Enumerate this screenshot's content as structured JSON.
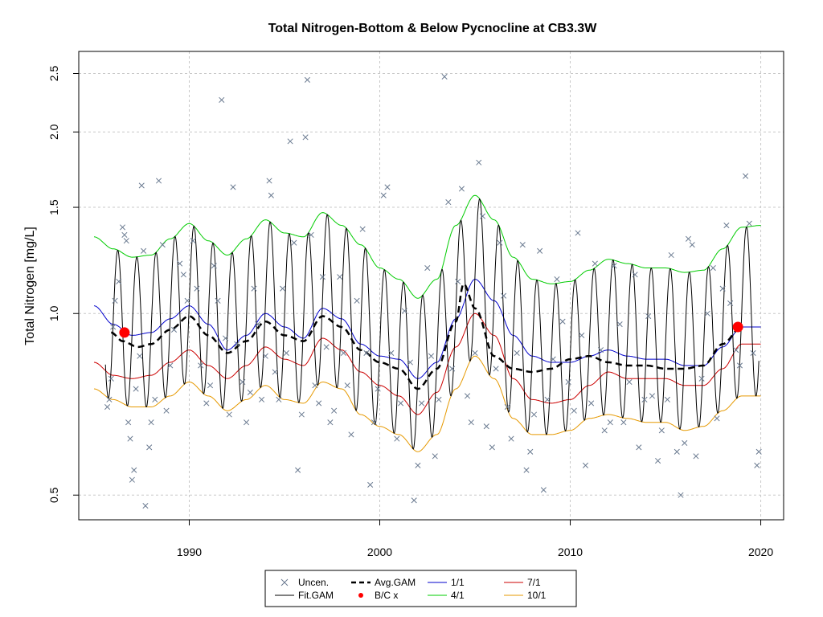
{
  "chart_data": {
    "type": "line",
    "title": "Total Nitrogen-Bottom & Below Pycnocline at CB3.3W",
    "ylabel": "Total Nitrogen [mg/L]",
    "xlabel": "",
    "y_scale": "log",
    "xlim": [
      1984.2,
      2021.2
    ],
    "ylim": [
      0.455,
      2.72
    ],
    "x_ticks": [
      1990,
      2000,
      2010,
      2020
    ],
    "x_tick_labels": [
      "1990",
      "2000",
      "2010",
      "2020"
    ],
    "y_ticks": [
      0.5,
      1.0,
      1.5,
      2.0,
      2.5
    ],
    "y_tick_labels": [
      "0.5",
      "1.0",
      "1.5",
      "2.0",
      "2.5"
    ],
    "grid": true,
    "legend_position": "bottom-outside",
    "legend": [
      {
        "label": "Uncen.",
        "symbol": "x",
        "color": "#6a7a90"
      },
      {
        "label": "Fit.GAM",
        "symbol": "line",
        "color": "#000000"
      },
      {
        "label": "Avg.GAM",
        "symbol": "dashed",
        "color": "#000000"
      },
      {
        "label": "B/C x",
        "symbol": "dot",
        "color": "#ff0000"
      },
      {
        "label": "1/1",
        "symbol": "line",
        "color": "#0000cc"
      },
      {
        "label": "4/1",
        "symbol": "line",
        "color": "#00cc00"
      },
      {
        "label": "7/1",
        "symbol": "line",
        "color": "#cc0000"
      },
      {
        "label": "10/1",
        "symbol": "line",
        "color": "#e69900"
      }
    ],
    "series": [
      {
        "name": "4/1",
        "color": "#00cc00",
        "x": [
          1985,
          1986,
          1987,
          1988,
          1989,
          1990,
          1991,
          1992,
          1993,
          1994,
          1995,
          1996,
          1997,
          1998,
          1999,
          2000,
          2001,
          2002,
          2003,
          2004,
          2005,
          2006,
          2007,
          2008,
          2009,
          2010,
          2011,
          2012,
          2013,
          2014,
          2015,
          2016,
          2017,
          2018,
          2019,
          2020
        ],
        "y": [
          1.34,
          1.28,
          1.24,
          1.25,
          1.33,
          1.41,
          1.32,
          1.25,
          1.33,
          1.43,
          1.36,
          1.34,
          1.47,
          1.4,
          1.3,
          1.19,
          1.14,
          1.06,
          1.14,
          1.4,
          1.57,
          1.43,
          1.24,
          1.14,
          1.12,
          1.13,
          1.18,
          1.23,
          1.21,
          1.19,
          1.19,
          1.17,
          1.18,
          1.28,
          1.39,
          1.4
        ]
      },
      {
        "name": "1/1",
        "color": "#0000cc",
        "x": [
          1985,
          1986,
          1987,
          1988,
          1989,
          1990,
          1991,
          1992,
          1993,
          1994,
          1995,
          1996,
          1997,
          1998,
          1999,
          2000,
          2001,
          2002,
          2003,
          2004,
          2005,
          2006,
          2007,
          2008,
          2009,
          2010,
          2011,
          2012,
          2013,
          2014,
          2015,
          2016,
          2017,
          2018,
          2019,
          2020
        ],
        "y": [
          1.03,
          0.96,
          0.92,
          0.93,
          0.98,
          1.03,
          0.96,
          0.87,
          0.92,
          1.0,
          0.95,
          0.91,
          1.02,
          0.98,
          0.89,
          0.85,
          0.84,
          0.78,
          0.83,
          0.98,
          1.14,
          1.05,
          0.92,
          0.85,
          0.83,
          0.83,
          0.85,
          0.87,
          0.85,
          0.84,
          0.84,
          0.82,
          0.82,
          0.88,
          0.95,
          0.95
        ]
      },
      {
        "name": "7/1",
        "color": "#cc0000",
        "x": [
          1985,
          1986,
          1987,
          1988,
          1989,
          1990,
          1991,
          1992,
          1993,
          1994,
          1995,
          1996,
          1997,
          1998,
          1999,
          2000,
          2001,
          2002,
          2003,
          2004,
          2005,
          2006,
          2007,
          2008,
          2009,
          2010,
          2011,
          2012,
          2013,
          2014,
          2015,
          2016,
          2017,
          2018,
          2019,
          2020
        ],
        "y": [
          0.83,
          0.79,
          0.78,
          0.79,
          0.83,
          0.87,
          0.82,
          0.78,
          0.82,
          0.88,
          0.84,
          0.82,
          0.91,
          0.87,
          0.8,
          0.76,
          0.73,
          0.68,
          0.74,
          0.88,
          1.0,
          0.92,
          0.78,
          0.72,
          0.71,
          0.72,
          0.76,
          0.8,
          0.78,
          0.78,
          0.78,
          0.76,
          0.76,
          0.81,
          0.89,
          0.89
        ]
      },
      {
        "name": "10/1",
        "color": "#e69900",
        "x": [
          1985,
          1986,
          1987,
          1988,
          1989,
          1990,
          1991,
          1992,
          1993,
          1994,
          1995,
          1996,
          1997,
          1998,
          1999,
          2000,
          2001,
          2002,
          2003,
          2004,
          2005,
          2006,
          2007,
          2008,
          2009,
          2010,
          2011,
          2012,
          2013,
          2014,
          2015,
          2016,
          2017,
          2018,
          2019,
          2020
        ],
        "y": [
          0.75,
          0.72,
          0.7,
          0.7,
          0.73,
          0.77,
          0.73,
          0.69,
          0.72,
          0.76,
          0.72,
          0.71,
          0.77,
          0.75,
          0.68,
          0.65,
          0.63,
          0.59,
          0.63,
          0.75,
          0.85,
          0.78,
          0.67,
          0.63,
          0.63,
          0.64,
          0.67,
          0.68,
          0.67,
          0.66,
          0.66,
          0.64,
          0.65,
          0.69,
          0.73,
          0.73
        ]
      },
      {
        "name": "Avg.GAM",
        "color": "#000000",
        "dashed": true,
        "x": [
          1985.9,
          1986.5,
          1987.3,
          1988,
          1989,
          1990,
          1991,
          1992,
          1993,
          1994,
          1995,
          1996,
          1997,
          1998,
          1999,
          2000,
          2001,
          2002,
          2003,
          2004,
          2004.4,
          2005,
          2006,
          2007,
          2008,
          2009,
          2010,
          2011,
          2012,
          2013,
          2014,
          2015,
          2016,
          2017,
          2018,
          2019
        ],
        "y": [
          0.93,
          0.9,
          0.88,
          0.89,
          0.94,
          0.99,
          0.92,
          0.86,
          0.9,
          0.97,
          0.92,
          0.9,
          0.99,
          0.95,
          0.87,
          0.83,
          0.81,
          0.75,
          0.81,
          0.97,
          1.12,
          1.02,
          0.85,
          0.81,
          0.8,
          0.81,
          0.84,
          0.85,
          0.83,
          0.82,
          0.82,
          0.81,
          0.81,
          0.82,
          0.89,
          0.95
        ]
      }
    ],
    "fit_gam": {
      "name": "Fit.GAM",
      "color": "#000000",
      "upper_envelope": "4/1",
      "lower_envelope": "10/1",
      "cycles_per_year": 1,
      "x_range": [
        1985.6,
        2019.9
      ]
    },
    "bc_points": {
      "name": "B/C x",
      "color": "#ff0000",
      "points": [
        {
          "x": 1986.6,
          "y": 0.93
        },
        {
          "x": 2018.8,
          "y": 0.95
        }
      ]
    },
    "observations": {
      "name": "Uncen.",
      "color": "#6a7a90",
      "points": [
        [
          1985.7,
          0.7
        ],
        [
          1985.8,
          0.72
        ],
        [
          1985.9,
          0.78
        ],
        [
          1986.0,
          0.95
        ],
        [
          1986.1,
          1.05
        ],
        [
          1986.3,
          1.13
        ],
        [
          1986.5,
          1.39
        ],
        [
          1986.6,
          1.35
        ],
        [
          1986.7,
          1.32
        ],
        [
          1986.8,
          0.66
        ],
        [
          1986.9,
          0.62
        ],
        [
          1987.0,
          0.53
        ],
        [
          1987.1,
          0.55
        ],
        [
          1987.2,
          0.75
        ],
        [
          1987.4,
          0.85
        ],
        [
          1987.5,
          1.63
        ],
        [
          1987.6,
          1.27
        ],
        [
          1987.7,
          0.48
        ],
        [
          1987.9,
          0.6
        ],
        [
          1988.0,
          0.66
        ],
        [
          1988.2,
          0.72
        ],
        [
          1988.4,
          1.66
        ],
        [
          1988.6,
          1.3
        ],
        [
          1988.8,
          0.69
        ],
        [
          1989.0,
          0.82
        ],
        [
          1989.2,
          0.94
        ],
        [
          1989.5,
          1.21
        ],
        [
          1989.7,
          1.16
        ],
        [
          1989.9,
          1.05
        ],
        [
          1990.2,
          1.32
        ],
        [
          1990.4,
          1.1
        ],
        [
          1990.6,
          0.82
        ],
        [
          1990.9,
          0.71
        ],
        [
          1991.1,
          0.76
        ],
        [
          1991.3,
          1.2
        ],
        [
          1991.5,
          1.05
        ],
        [
          1991.7,
          2.26
        ],
        [
          1991.9,
          0.91
        ],
        [
          1992.1,
          0.68
        ],
        [
          1992.3,
          1.62
        ],
        [
          1992.5,
          0.89
        ],
        [
          1992.8,
          0.77
        ],
        [
          1993.0,
          0.66
        ],
        [
          1993.2,
          0.74
        ],
        [
          1993.4,
          1.1
        ],
        [
          1993.6,
          0.96
        ],
        [
          1993.8,
          0.72
        ],
        [
          1994.0,
          0.85
        ],
        [
          1994.2,
          1.66
        ],
        [
          1994.3,
          1.57
        ],
        [
          1994.5,
          0.8
        ],
        [
          1994.7,
          0.72
        ],
        [
          1994.9,
          1.1
        ],
        [
          1995.1,
          0.86
        ],
        [
          1995.3,
          1.93
        ],
        [
          1995.5,
          1.31
        ],
        [
          1995.7,
          0.55
        ],
        [
          1995.9,
          0.68
        ],
        [
          1996.1,
          1.96
        ],
        [
          1996.2,
          2.44
        ],
        [
          1996.4,
          1.35
        ],
        [
          1996.6,
          0.76
        ],
        [
          1996.8,
          0.71
        ],
        [
          1997.0,
          1.15
        ],
        [
          1997.2,
          0.88
        ],
        [
          1997.4,
          0.66
        ],
        [
          1997.6,
          0.69
        ],
        [
          1997.9,
          1.15
        ],
        [
          1998.1,
          0.86
        ],
        [
          1998.3,
          0.76
        ],
        [
          1998.5,
          0.63
        ],
        [
          1998.8,
          1.05
        ],
        [
          1999.1,
          1.38
        ],
        [
          1999.3,
          0.86
        ],
        [
          1999.5,
          0.52
        ],
        [
          1999.7,
          0.66
        ],
        [
          1999.9,
          0.75
        ],
        [
          2000.2,
          1.57
        ],
        [
          2000.4,
          1.62
        ],
        [
          2000.6,
          0.86
        ],
        [
          2000.9,
          0.62
        ],
        [
          2001.1,
          0.71
        ],
        [
          2001.3,
          1.01
        ],
        [
          2001.6,
          0.83
        ],
        [
          2001.8,
          0.49
        ],
        [
          2002.0,
          0.56
        ],
        [
          2002.2,
          0.71
        ],
        [
          2002.5,
          1.19
        ],
        [
          2002.7,
          0.85
        ],
        [
          2002.9,
          0.58
        ],
        [
          2003.1,
          0.72
        ],
        [
          2003.4,
          2.47
        ],
        [
          2003.6,
          1.53
        ],
        [
          2003.8,
          0.81
        ],
        [
          2004.1,
          1.13
        ],
        [
          2004.3,
          1.61
        ],
        [
          2004.6,
          0.73
        ],
        [
          2004.8,
          0.66
        ],
        [
          2005.0,
          0.86
        ],
        [
          2005.2,
          1.78
        ],
        [
          2005.4,
          1.45
        ],
        [
          2005.6,
          0.65
        ],
        [
          2005.9,
          0.6
        ],
        [
          2006.1,
          0.81
        ],
        [
          2006.3,
          1.31
        ],
        [
          2006.5,
          1.07
        ],
        [
          2006.7,
          0.7
        ],
        [
          2006.9,
          0.62
        ],
        [
          2007.2,
          0.86
        ],
        [
          2007.5,
          1.3
        ],
        [
          2007.7,
          0.55
        ],
        [
          2007.9,
          0.59
        ],
        [
          2008.1,
          0.68
        ],
        [
          2008.4,
          1.27
        ],
        [
          2008.6,
          0.51
        ],
        [
          2008.8,
          0.72
        ],
        [
          2009.1,
          0.84
        ],
        [
          2009.3,
          1.14
        ],
        [
          2009.6,
          0.97
        ],
        [
          2009.9,
          0.77
        ],
        [
          2010.2,
          0.69
        ],
        [
          2010.4,
          1.36
        ],
        [
          2010.6,
          0.92
        ],
        [
          2010.8,
          0.56
        ],
        [
          2011.1,
          0.71
        ],
        [
          2011.3,
          1.21
        ],
        [
          2011.6,
          0.87
        ],
        [
          2011.8,
          0.64
        ],
        [
          2012.1,
          0.66
        ],
        [
          2012.3,
          1.2
        ],
        [
          2012.6,
          0.96
        ],
        [
          2012.8,
          0.66
        ],
        [
          2013.1,
          0.77
        ],
        [
          2013.4,
          1.16
        ],
        [
          2013.6,
          0.6
        ],
        [
          2013.9,
          0.72
        ],
        [
          2014.1,
          0.99
        ],
        [
          2014.3,
          0.73
        ],
        [
          2014.6,
          0.57
        ],
        [
          2014.8,
          0.64
        ],
        [
          2015.1,
          0.72
        ],
        [
          2015.3,
          1.25
        ],
        [
          2015.6,
          0.59
        ],
        [
          2015.8,
          0.5
        ],
        [
          2016.0,
          0.61
        ],
        [
          2016.2,
          1.33
        ],
        [
          2016.4,
          1.3
        ],
        [
          2016.6,
          0.58
        ],
        [
          2016.9,
          0.78
        ],
        [
          2017.2,
          1.0
        ],
        [
          2017.5,
          1.19
        ],
        [
          2017.7,
          0.67
        ],
        [
          2018.0,
          1.1
        ],
        [
          2018.2,
          1.4
        ],
        [
          2018.4,
          1.04
        ],
        [
          2018.7,
          0.87
        ],
        [
          2018.9,
          0.82
        ],
        [
          2019.2,
          1.69
        ],
        [
          2019.4,
          1.41
        ],
        [
          2019.6,
          0.86
        ],
        [
          2019.8,
          0.56
        ],
        [
          2019.9,
          0.59
        ]
      ]
    }
  }
}
